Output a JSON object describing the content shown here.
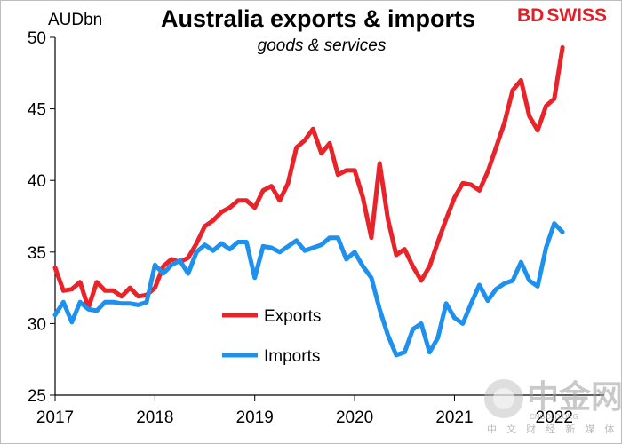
{
  "brand": {
    "bd": "BD",
    "swiss": "SWISS",
    "color": "#e41e26"
  },
  "watermark": {
    "name": "中金网",
    "url": "CNGOLD.ORG",
    "tagline": "中 文 财 经 新 媒 体"
  },
  "chart_data": {
    "type": "line",
    "title": "Australia exports & imports",
    "subtitle": "goods & services",
    "ylabel": "AUDbn",
    "xlim": [
      2017,
      2022.5
    ],
    "ylim": [
      25,
      50
    ],
    "yticks": [
      25,
      30,
      35,
      40,
      45,
      50
    ],
    "xticks": [
      2017,
      2018,
      2019,
      2020,
      2021,
      2022
    ],
    "xtick_labels": [
      "2017",
      "2018",
      "2019",
      "2020",
      "2021",
      "2022"
    ],
    "series": [
      {
        "name": "Exports",
        "color": "#e8232a",
        "x": [
          2017.0,
          2017.083,
          2017.167,
          2017.25,
          2017.333,
          2017.417,
          2017.5,
          2017.583,
          2017.667,
          2017.75,
          2017.833,
          2017.917,
          2018.0,
          2018.083,
          2018.167,
          2018.25,
          2018.333,
          2018.417,
          2018.5,
          2018.583,
          2018.667,
          2018.75,
          2018.833,
          2018.917,
          2019.0,
          2019.083,
          2019.167,
          2019.25,
          2019.333,
          2019.417,
          2019.5,
          2019.583,
          2019.667,
          2019.75,
          2019.833,
          2019.917,
          2020.0,
          2020.083,
          2020.167,
          2020.25,
          2020.333,
          2020.417,
          2020.5,
          2020.583,
          2020.667,
          2020.75,
          2020.833,
          2020.917,
          2021.0,
          2021.083,
          2021.167,
          2021.25,
          2021.333,
          2021.417,
          2021.5,
          2021.583,
          2021.667,
          2021.75,
          2021.833,
          2021.917,
          2022.0,
          2022.083,
          2022.167
        ],
        "values": [
          33.9,
          32.3,
          32.4,
          32.9,
          31.1,
          32.9,
          32.3,
          32.3,
          31.9,
          32.5,
          31.9,
          32.0,
          32.5,
          34.0,
          34.5,
          34.3,
          34.6,
          35.6,
          36.8,
          37.2,
          37.8,
          38.1,
          38.6,
          38.6,
          38.1,
          39.3,
          39.6,
          38.6,
          39.8,
          42.3,
          42.8,
          43.6,
          41.9,
          42.6,
          40.4,
          40.7,
          40.7,
          38.8,
          36.0,
          41.2,
          37.3,
          34.8,
          35.2,
          34.0,
          33.0,
          34.0,
          35.7,
          37.3,
          38.8,
          39.8,
          39.7,
          39.3,
          40.6,
          42.3,
          44.0,
          46.3,
          47.0,
          44.5,
          43.5,
          45.2,
          45.7,
          49.3,
          null
        ]
      },
      {
        "name": "Imports",
        "color": "#1e90ee",
        "x": [
          2017.0,
          2017.083,
          2017.167,
          2017.25,
          2017.333,
          2017.417,
          2017.5,
          2017.583,
          2017.667,
          2017.75,
          2017.833,
          2017.917,
          2018.0,
          2018.083,
          2018.167,
          2018.25,
          2018.333,
          2018.417,
          2018.5,
          2018.583,
          2018.667,
          2018.75,
          2018.833,
          2018.917,
          2019.0,
          2019.083,
          2019.167,
          2019.25,
          2019.333,
          2019.417,
          2019.5,
          2019.583,
          2019.667,
          2019.75,
          2019.833,
          2019.917,
          2020.0,
          2020.083,
          2020.167,
          2020.25,
          2020.333,
          2020.417,
          2020.5,
          2020.583,
          2020.667,
          2020.75,
          2020.833,
          2020.917,
          2021.0,
          2021.083,
          2021.167,
          2021.25,
          2021.333,
          2021.417,
          2021.5,
          2021.583,
          2021.667,
          2021.75,
          2021.833,
          2021.917,
          2022.0,
          2022.083,
          2022.167
        ],
        "values": [
          30.6,
          31.5,
          30.1,
          31.5,
          31.0,
          30.9,
          31.5,
          31.5,
          31.4,
          31.4,
          31.3,
          31.5,
          34.1,
          33.5,
          34.1,
          34.4,
          33.5,
          35.0,
          35.5,
          35.1,
          35.6,
          35.2,
          35.7,
          35.7,
          33.2,
          35.4,
          35.3,
          35.0,
          35.4,
          35.8,
          35.1,
          35.3,
          35.5,
          36.0,
          36.0,
          34.5,
          35.0,
          34.0,
          33.2,
          31.0,
          29.2,
          27.8,
          28.0,
          29.6,
          30.0,
          28.0,
          29.0,
          31.4,
          30.4,
          30.0,
          31.4,
          32.7,
          31.6,
          32.4,
          32.8,
          33.0,
          34.3,
          33.0,
          32.6,
          35.3,
          37.0,
          36.4,
          null
        ]
      }
    ],
    "legend_position": "lower-left"
  }
}
